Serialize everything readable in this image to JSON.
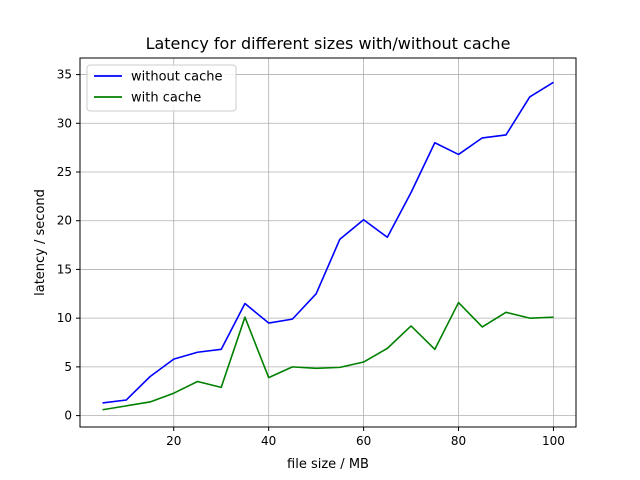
{
  "chart_data": {
    "type": "line",
    "title": "Latency for different sizes with/without cache",
    "xlabel": "file size / MB",
    "ylabel": "latency / second",
    "xlim": [
      0.25,
      104.75
    ],
    "ylim": [
      -1.17,
      36.7
    ],
    "x_ticks": [
      20,
      40,
      60,
      80,
      100
    ],
    "y_ticks": [
      0,
      5,
      10,
      15,
      20,
      25,
      30,
      35
    ],
    "grid": true,
    "legend_position": "top-left",
    "x": [
      5,
      10,
      15,
      20,
      25,
      30,
      35,
      40,
      45,
      50,
      55,
      60,
      65,
      70,
      75,
      80,
      85,
      90,
      95,
      100
    ],
    "series": [
      {
        "name": "without cache",
        "color": "#0000ff",
        "values": [
          1.3,
          1.6,
          4.0,
          5.8,
          6.5,
          6.8,
          11.5,
          9.5,
          9.9,
          12.5,
          18.1,
          20.1,
          18.3,
          22.9,
          28.0,
          26.8,
          28.5,
          28.8,
          32.7,
          34.2
        ]
      },
      {
        "name": "with cache",
        "color": "#008000",
        "values": [
          0.6,
          1.0,
          1.4,
          2.3,
          3.5,
          2.9,
          10.1,
          3.9,
          5.0,
          4.85,
          4.95,
          5.5,
          6.9,
          9.2,
          6.8,
          11.6,
          9.1,
          10.6,
          10.0,
          10.1
        ]
      }
    ]
  }
}
